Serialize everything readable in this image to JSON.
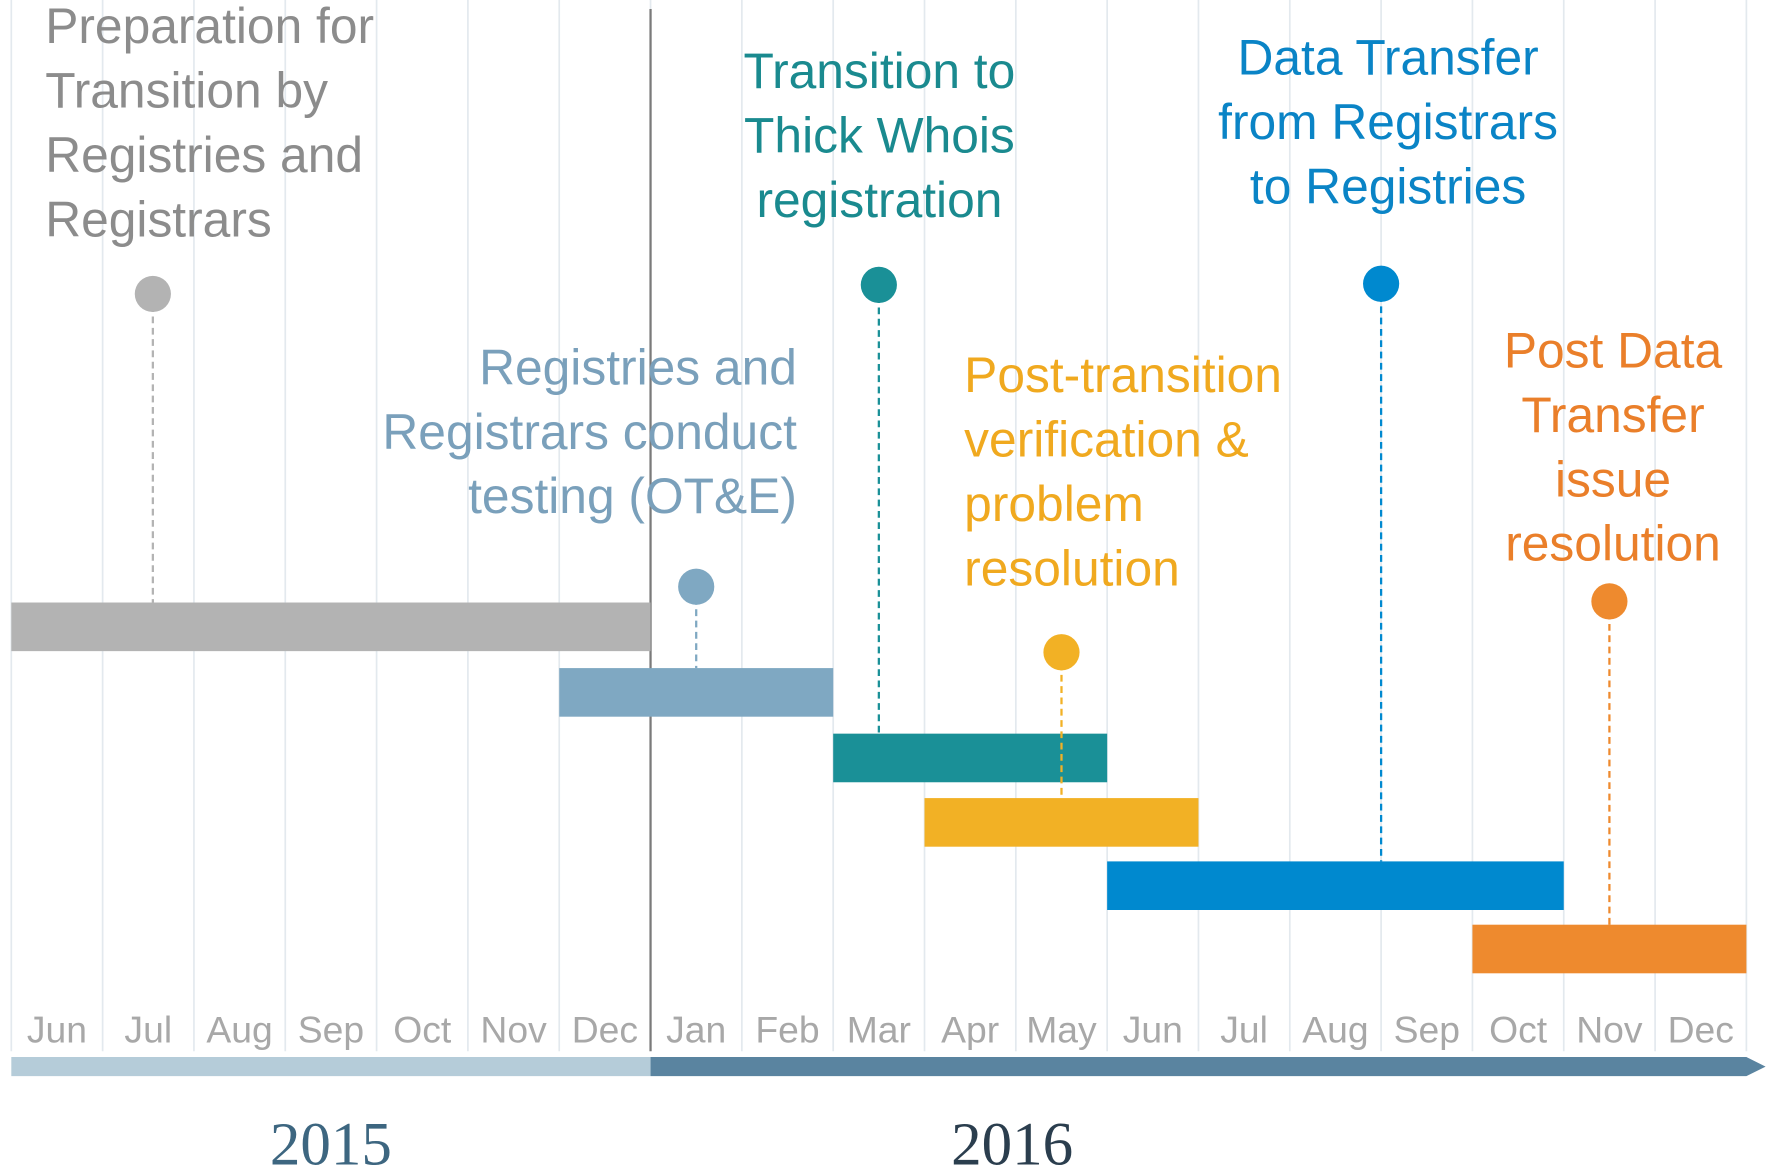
{
  "chart_data": {
    "type": "gantt",
    "categories": [
      "Jun",
      "Jul",
      "Aug",
      "Sep",
      "Oct",
      "Nov",
      "Dec",
      "Jan",
      "Feb",
      "Mar",
      "Apr",
      "May",
      "Jun",
      "Jul",
      "Aug",
      "Sep",
      "Oct",
      "Nov",
      "Dec"
    ],
    "xlim": [
      0,
      19
    ],
    "xticks": [
      0,
      1,
      2,
      3,
      4,
      5,
      6,
      7,
      8,
      9,
      10,
      11,
      12,
      13,
      14,
      15,
      16,
      17,
      18,
      19
    ],
    "grid": true,
    "years": [
      {
        "label": "2015",
        "start": 0,
        "end": 7,
        "color": "#b5ccd9",
        "text_color": "#3d6680"
      },
      {
        "label": "2016",
        "start": 7,
        "end": 19,
        "color": "#5a84a0",
        "text_color": "#2b3e4e"
      }
    ],
    "tasks": [
      {
        "label": [
          "Preparation for",
          "Transition by",
          "Registries and",
          "Registrars"
        ],
        "start": 0,
        "end": 7,
        "pin": 1.55,
        "color": "#b3b3b3",
        "text_color": "#8c8c8c"
      },
      {
        "label": [
          "Registries and",
          "Registrars conduct",
          "testing (OT&E)"
        ],
        "start": 6,
        "end": 9,
        "pin": 7.5,
        "color": "#7fa8c2",
        "text_color": "#7aa0bb"
      },
      {
        "label": [
          "Transition to",
          "Thick Whois",
          "registration"
        ],
        "start": 9,
        "end": 12,
        "pin": 9.5,
        "color": "#1a9097",
        "text_color": "#1a8a8f"
      },
      {
        "label": [
          "Post-transition",
          "verification &",
          "problem",
          "resolution"
        ],
        "start": 10,
        "end": 13,
        "pin": 11.5,
        "color": "#f2b125",
        "text_color": "#f0a91f"
      },
      {
        "label": [
          "Data Transfer",
          "from Registrars",
          "to Registries"
        ],
        "start": 12,
        "end": 17,
        "pin": 15,
        "color": "#0089cf",
        "text_color": "#0a84c6"
      },
      {
        "label": [
          "Post Data",
          "Transfer",
          "issue",
          "resolution"
        ],
        "start": 16,
        "end": 19,
        "pin": 17.5,
        "color": "#ee8a2e",
        "text_color": "#ea7f2a"
      }
    ]
  }
}
